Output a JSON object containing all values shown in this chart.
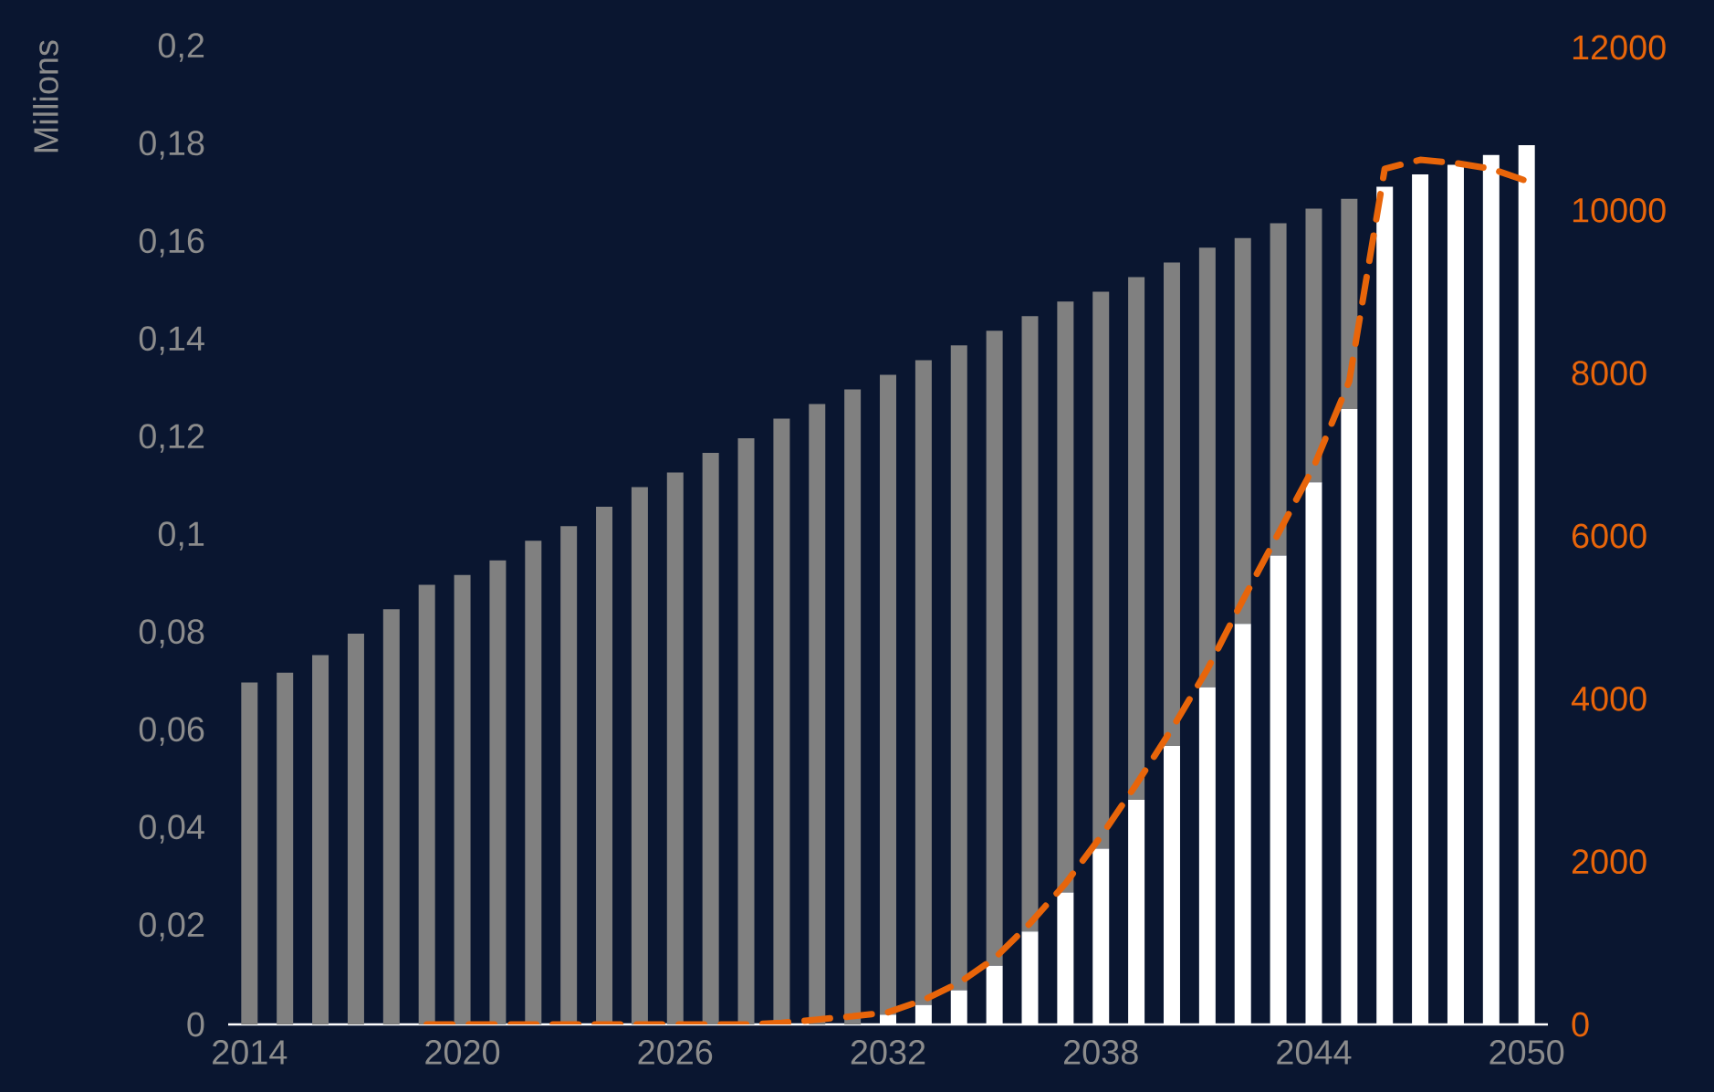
{
  "chart_data": {
    "type": "bar",
    "stacked": true,
    "ylabel": "Millions",
    "categories": [
      "2014",
      null,
      null,
      null,
      null,
      null,
      "2020",
      null,
      null,
      null,
      null,
      null,
      "2026",
      null,
      null,
      null,
      null,
      null,
      "2032",
      null,
      null,
      null,
      null,
      null,
      "2038",
      null,
      null,
      null,
      null,
      null,
      "2044",
      null,
      null,
      null,
      null,
      null,
      "2050"
    ],
    "series": [
      {
        "color": "#ffffff",
        "values": [
          0,
          0,
          0,
          0,
          0,
          0,
          0,
          0,
          0,
          0,
          0,
          0,
          0,
          0,
          0,
          0,
          0,
          0,
          0.002,
          0.004,
          0.007,
          0.012,
          0.019,
          0.027,
          0.036,
          0.046,
          0.057,
          0.069,
          0.082,
          0.096,
          0.111,
          0.126,
          0.1715,
          0.174,
          0.176,
          0.178,
          0.18
        ]
      },
      {
        "color": "#808080",
        "values": [
          0.07,
          0.072,
          0.0756,
          0.08,
          0.085,
          0.09,
          0.092,
          0.095,
          0.099,
          0.102,
          0.106,
          0.11,
          0.113,
          0.117,
          0.12,
          0.124,
          0.127,
          0.13,
          0.131,
          0.132,
          0.132,
          0.13,
          0.126,
          0.121,
          0.114,
          0.107,
          0.099,
          0.09,
          0.079,
          0.068,
          0.056,
          0.043,
          0,
          0,
          0,
          0,
          0
        ]
      },
      {
        "type": "line",
        "axis": "y2",
        "color": "#e8650a",
        "line_style": "dashed",
        "values": [
          null,
          null,
          null,
          null,
          null,
          0,
          0,
          0,
          0,
          0,
          0,
          0,
          0,
          0,
          0,
          20,
          60,
          100,
          150,
          300,
          510,
          810,
          1240,
          1730,
          2310,
          2950,
          3630,
          4360,
          5210,
          6030,
          6850,
          7900,
          10510,
          10620,
          10580,
          10510,
          10360
        ]
      }
    ],
    "ylim": [
      0,
      0.2
    ],
    "yticks": [
      0,
      {
        "value": 0.02,
        "label": "0,02"
      },
      {
        "value": 0.04,
        "label": "0,04"
      },
      {
        "value": 0.06,
        "label": "0,06"
      },
      {
        "value": 0.08,
        "label": "0,08"
      },
      {
        "value": 0.1,
        "label": "0,1"
      },
      {
        "value": 0.12,
        "label": "0,12"
      },
      {
        "value": 0.14,
        "label": "0,14"
      },
      {
        "value": 0.16,
        "label": "0,16"
      },
      {
        "value": 0.18,
        "label": "0,18"
      },
      {
        "value": 0.2,
        "label": "0,2"
      }
    ],
    "y2lim": [
      0,
      12000
    ],
    "y2ticks": [
      0,
      2000,
      4000,
      6000,
      8000,
      10000,
      12000
    ]
  }
}
